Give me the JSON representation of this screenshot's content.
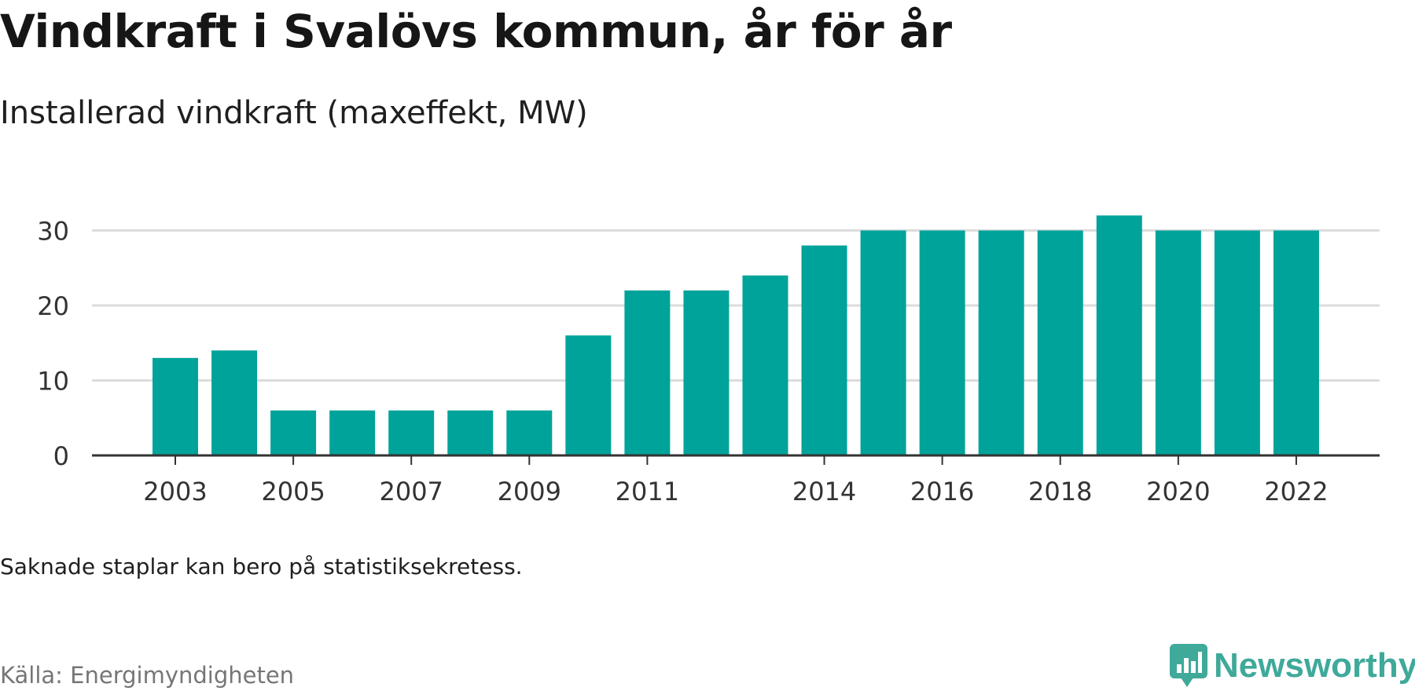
{
  "title": "Vindkraft i Svalövs kommun, år för år",
  "subtitle": "Installerad vindkraft (maxeffekt, MW)",
  "note": "Saknade staplar kan bero på statistiksekretess.",
  "source": "Källa: Energimyndigheten",
  "brand": {
    "name": "Newsworthy",
    "color": "#3fa99a",
    "icon": "bar-chart-speech-bubble-icon"
  },
  "colors": {
    "bar": "#00a39a",
    "grid": "#dcdcdc",
    "axis": "#333333",
    "tick_text": "#333333"
  },
  "chart_data": {
    "type": "bar",
    "title": "Vindkraft i Svalövs kommun, år för år",
    "subtitle": "Installerad vindkraft (maxeffekt, MW)",
    "xlabel": "",
    "ylabel": "",
    "x": [
      2003,
      2004,
      2005,
      2006,
      2007,
      2008,
      2009,
      2010,
      2011,
      2012,
      2013,
      2014,
      2015,
      2016,
      2017,
      2018,
      2019,
      2020,
      2021,
      2022
    ],
    "values": [
      13,
      14,
      6,
      6,
      6,
      6,
      6,
      16,
      22,
      22,
      24,
      28,
      30,
      30,
      30,
      30,
      32,
      30,
      30,
      30
    ],
    "x_tick_labels": [
      "2003",
      "2005",
      "2007",
      "2009",
      "2011",
      "2014",
      "2016",
      "2018",
      "2020",
      "2022"
    ],
    "y_ticks": [
      0,
      10,
      20,
      30
    ],
    "ylim": [
      0,
      32
    ],
    "grid": true,
    "legend": "none"
  }
}
